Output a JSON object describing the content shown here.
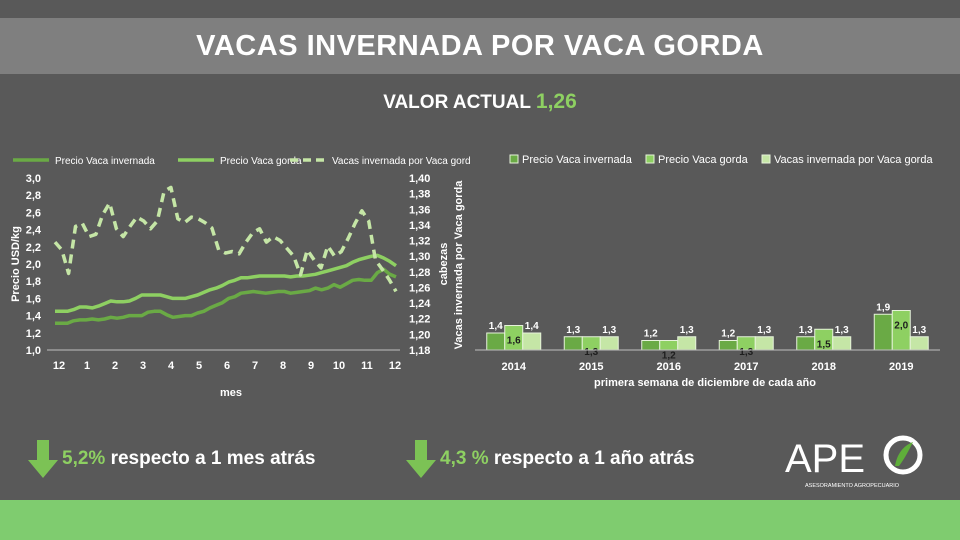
{
  "title": "VACAS INVERNADA POR VACA GORDA",
  "valor_actual": {
    "label": "VALOR ACTUAL",
    "value": "1,26"
  },
  "stats": [
    {
      "pct": "5,2%",
      "text": " respecto a 1 mes atrás"
    },
    {
      "pct": "4,3 %",
      "text": " respecto a 1 año atrás"
    }
  ],
  "logo": {
    "text": "APE",
    "subtitle": "ASESORAMIENTO AGROPECUARIO"
  },
  "colors": {
    "dark_green": "#6aaa45",
    "mid_green": "#8ed062",
    "light_green": "#c5e6a6",
    "background": "#595959",
    "accent": "#8ed062"
  },
  "chart_data": [
    {
      "type": "line",
      "xlabel": "mes",
      "ylabel": "Precio USD/kg",
      "y2label": "cabezas",
      "legend": [
        "Precio Vaca invernada",
        "Precio Vaca gorda",
        "Vacas invernada por Vaca gorda"
      ],
      "legend_position": "top",
      "x_tick_labels": [
        "12",
        "1",
        "2",
        "3",
        "4",
        "5",
        "6",
        "7",
        "8",
        "9",
        "10",
        "11",
        "12"
      ],
      "y_ticks": [
        "1,0",
        "1,2",
        "1,4",
        "1,6",
        "1,8",
        "2,0",
        "2,2",
        "2,4",
        "2,6",
        "2,8",
        "3,0"
      ],
      "y2_ticks": [
        "1,18",
        "1,20",
        "1,22",
        "1,24",
        "1,26",
        "1,28",
        "1,30",
        "1,32",
        "1,34",
        "1,36",
        "1,38",
        "1,40"
      ],
      "ylim": [
        1.0,
        3.0
      ],
      "y2lim": [
        1.18,
        1.4
      ],
      "grid": false,
      "series": [
        {
          "name": "Precio Vaca invernada",
          "axis": "left",
          "values": [
            1.31,
            1.31,
            1.31,
            1.34,
            1.35,
            1.35,
            1.36,
            1.35,
            1.36,
            1.38,
            1.37,
            1.38,
            1.4,
            1.4,
            1.4,
            1.44,
            1.45,
            1.45,
            1.41,
            1.38,
            1.39,
            1.4,
            1.4,
            1.43,
            1.45,
            1.49,
            1.52,
            1.55,
            1.6,
            1.62,
            1.66,
            1.67,
            1.68,
            1.67,
            1.66,
            1.67,
            1.68,
            1.68,
            1.66,
            1.67,
            1.68,
            1.69,
            1.72,
            1.7,
            1.72,
            1.76,
            1.73,
            1.77,
            1.81,
            1.82,
            1.81,
            1.81,
            1.9,
            1.94,
            1.88,
            1.85
          ]
        },
        {
          "name": "Precio Vaca gorda",
          "axis": "left",
          "values": [
            1.45,
            1.45,
            1.45,
            1.47,
            1.5,
            1.5,
            1.49,
            1.51,
            1.54,
            1.57,
            1.56,
            1.56,
            1.57,
            1.6,
            1.64,
            1.64,
            1.64,
            1.64,
            1.62,
            1.6,
            1.6,
            1.6,
            1.62,
            1.64,
            1.67,
            1.7,
            1.72,
            1.75,
            1.79,
            1.81,
            1.84,
            1.84,
            1.85,
            1.86,
            1.86,
            1.86,
            1.86,
            1.86,
            1.85,
            1.86,
            1.86,
            1.87,
            1.88,
            1.9,
            1.92,
            1.94,
            1.96,
            1.98,
            2.02,
            2.05,
            2.07,
            2.09,
            2.1,
            2.07,
            2.03,
            1.98
          ]
        },
        {
          "name": "Vacas invernada por Vaca gorda",
          "axis": "right",
          "values": [
            1.318,
            1.308,
            1.278,
            1.338,
            1.342,
            1.325,
            1.328,
            1.353,
            1.368,
            1.335,
            1.325,
            1.338,
            1.35,
            1.345,
            1.335,
            1.345,
            1.383,
            1.388,
            1.348,
            1.343,
            1.35,
            1.348,
            1.343,
            1.336,
            1.308,
            1.304,
            1.306,
            1.303,
            1.318,
            1.33,
            1.335,
            1.318,
            1.325,
            1.32,
            1.31,
            1.3,
            1.276,
            1.308,
            1.295,
            1.285,
            1.313,
            1.3,
            1.306,
            1.323,
            1.342,
            1.358,
            1.345,
            1.295,
            1.283,
            1.27,
            1.255
          ]
        }
      ]
    },
    {
      "type": "bar",
      "xlabel": "primera semana de diciembre de cada año",
      "ylabel": "Vacas invernada por Vaca gorda",
      "legend": [
        "Precio Vaca invernada",
        "Precio Vaca gorda",
        "Vacas invernada por Vaca gorda"
      ],
      "legend_position": "top",
      "grid": false,
      "categories": [
        "2014",
        "2015",
        "2016",
        "2017",
        "2018",
        "2019"
      ],
      "series": [
        {
          "name": "Precio Vaca invernada",
          "values": [
            1.4,
            1.3,
            1.2,
            1.2,
            1.3,
            1.9
          ],
          "labels": [
            "1,4",
            "1,3",
            "1,2",
            "1,2",
            "1,3",
            "1,9"
          ]
        },
        {
          "name": "Precio Vaca gorda",
          "values": [
            1.6,
            1.3,
            1.2,
            1.3,
            1.5,
            2.0
          ],
          "labels": [
            "1,6",
            "1,3",
            "1,2",
            "1,3",
            "1,5",
            "2,0"
          ]
        },
        {
          "name": "Vacas invernada por Vaca gorda",
          "values": [
            1.4,
            1.3,
            1.3,
            1.3,
            1.3,
            1.3
          ],
          "labels": [
            "1,4",
            "1,3",
            "1,3",
            "1,3",
            "1,3",
            "1,3"
          ]
        }
      ]
    }
  ]
}
